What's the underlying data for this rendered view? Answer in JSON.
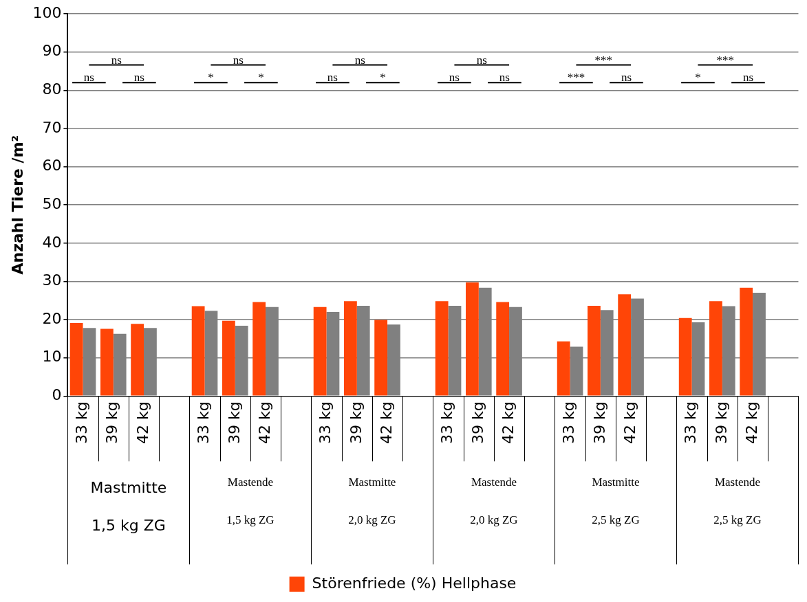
{
  "chart_data": {
    "type": "bar",
    "ylabel": "Anzahl Tiere /m²",
    "categories": [
      "33 kg",
      "39 kg",
      "42 kg",
      null,
      "33 kg",
      "39 kg",
      "42 kg",
      null,
      "33 kg",
      "39 kg",
      "42 kg",
      null,
      "33 kg",
      "39 kg",
      "42 kg",
      null,
      "33 kg",
      "39 kg",
      "42 kg",
      null,
      "33 kg",
      "39 kg",
      "42 kg",
      null
    ],
    "series": [
      {
        "name": "Störenfriede (%) Hellphase",
        "color": "#ff4507",
        "values": [
          19.1,
          17.6,
          18.9,
          null,
          23.5,
          19.7,
          24.6,
          null,
          23.3,
          24.8,
          19.9,
          null,
          24.8,
          29.7,
          24.6,
          null,
          14.3,
          23.6,
          26.6,
          null,
          20.4,
          24.8,
          28.3,
          null
        ]
      },
      {
        "color": "#808080",
        "values": [
          17.8,
          16.3,
          17.8,
          null,
          22.3,
          18.4,
          23.3,
          null,
          22.0,
          23.6,
          18.7,
          null,
          23.6,
          28.3,
          23.3,
          null,
          12.9,
          22.5,
          25.5,
          null,
          19.3,
          23.5,
          27.0,
          null
        ]
      }
    ],
    "ylim": [
      0,
      100
    ],
    "yticks": [
      0,
      10,
      20,
      30,
      40,
      50,
      60,
      70,
      80,
      90,
      100
    ],
    "grid": "y",
    "legend": "bottom",
    "annotations": [
      "Mastmitte",
      "1,5 kg ZG",
      "Mastende",
      "1,5 kg ZG",
      "Mastmitte",
      "2,0 kg ZG",
      "Mastende",
      "2,0 kg ZG",
      "Mastmitte",
      "2,5 kg ZG",
      "Mastende",
      "2,5 kg ZG",
      "ns",
      "ns",
      "ns",
      "*",
      "ns",
      "*",
      "ns",
      "ns",
      "*",
      "ns",
      "ns",
      "ns",
      "***",
      "***",
      "ns",
      "*",
      "***",
      "ns"
    ]
  }
}
